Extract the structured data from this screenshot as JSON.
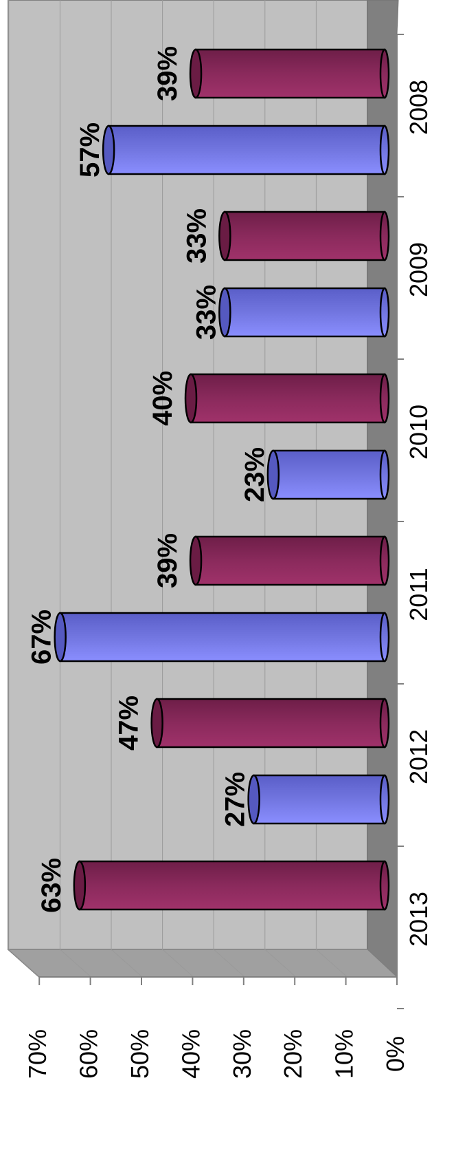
{
  "chart_data": {
    "type": "bar",
    "orientation": "rotated 90 degrees clockwise (value axis runs right-to-left, categories top-to-bottom)",
    "style": "3d-cylinder",
    "categories": [
      "2008",
      "2009",
      "2010",
      "2011",
      "2012",
      "2013"
    ],
    "series": [
      {
        "color": "#7b7fe8",
        "values": [
          57,
          33,
          23,
          67,
          27,
          null
        ],
        "labels": [
          "57%",
          "33%",
          "23%",
          "67%",
          "27%",
          ""
        ]
      },
      {
        "color": "#8e2d5e",
        "values": [
          39,
          33,
          40,
          39,
          47,
          63
        ],
        "labels": [
          "39%",
          "33%",
          "40%",
          "39%",
          "47%",
          "63%"
        ]
      }
    ],
    "y_ticks": [
      "0%",
      "10%",
      "20%",
      "30%",
      "40%",
      "50%",
      "60%",
      "70%"
    ],
    "ylim": [
      0,
      70
    ],
    "grid": true,
    "legend": "none",
    "colors": {
      "wall": "#c0c0c0",
      "side_wall": "#808080",
      "floor": "#a0a0a0"
    }
  }
}
